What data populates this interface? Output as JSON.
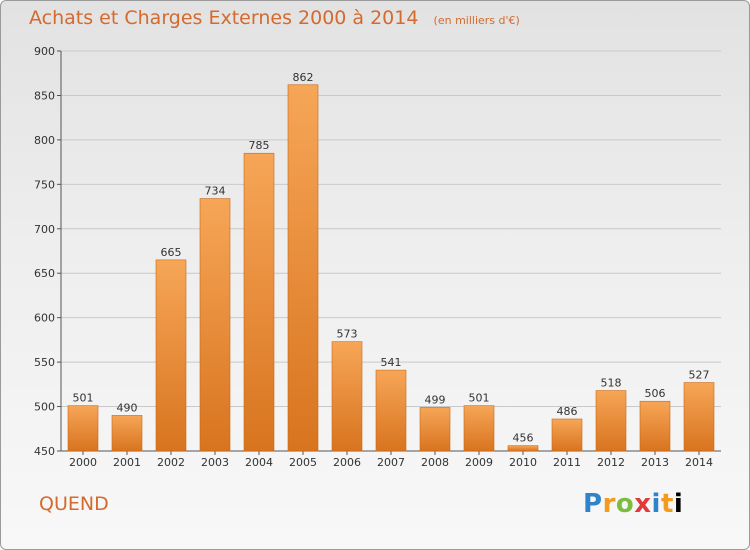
{
  "title": "Achats et Charges Externes 2000 à 2014",
  "unit": "(en milliers d'€)",
  "city": "QUEND",
  "logo_text": "Proxiti",
  "colors": {
    "accent": "#d46a2e",
    "bar_top": "#f6a657",
    "bar_bottom": "#d8741f",
    "grid": "#c9c9c9"
  },
  "chart_data": {
    "type": "bar",
    "title": "Achats et Charges Externes 2000 à 2014",
    "xlabel": "",
    "ylabel": "",
    "ylim": [
      450,
      900
    ],
    "yticks": [
      450,
      500,
      550,
      600,
      650,
      700,
      750,
      800,
      850,
      900
    ],
    "grid": true,
    "categories": [
      "2000",
      "2001",
      "2002",
      "2003",
      "2004",
      "2005",
      "2006",
      "2007",
      "2008",
      "2009",
      "2010",
      "2011",
      "2012",
      "2013",
      "2014"
    ],
    "values": [
      501,
      490,
      665,
      734,
      785,
      862,
      573,
      541,
      499,
      501,
      456,
      486,
      518,
      506,
      527
    ]
  }
}
